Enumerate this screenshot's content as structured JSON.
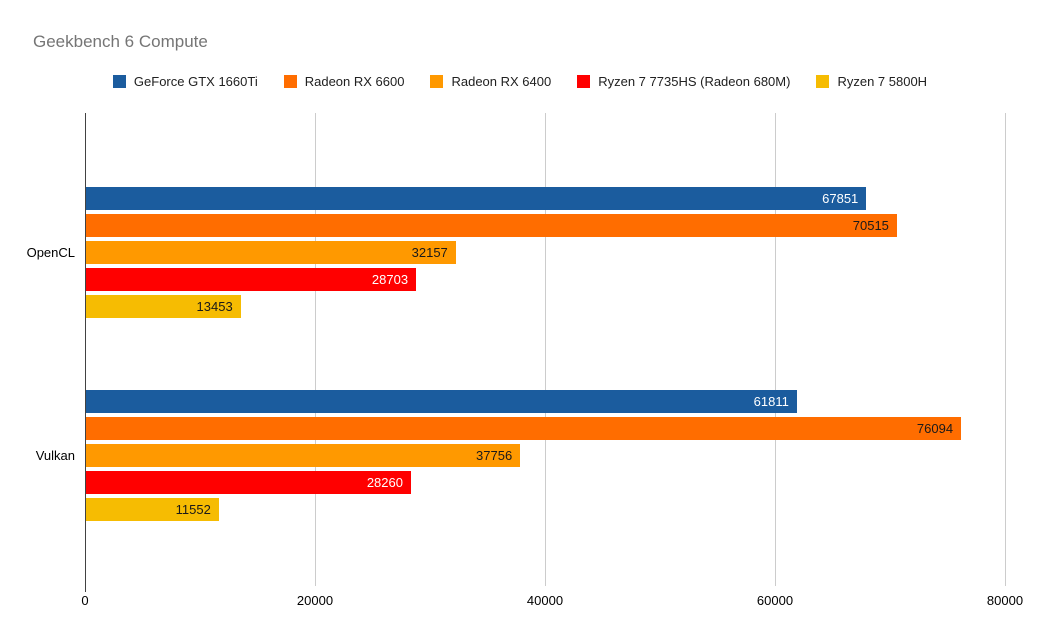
{
  "title": "Geekbench 6 Compute",
  "colors": {
    "background": "#ffffff",
    "title_text": "#757575",
    "gridline": "#cccccc",
    "axis_line": "#424242",
    "tick_text": "#000000"
  },
  "chart_data": {
    "type": "bar",
    "orientation": "horizontal",
    "title": "Geekbench 6 Compute",
    "xlabel": "",
    "ylabel": "",
    "categories": [
      "OpenCL",
      "Vulkan"
    ],
    "series": [
      {
        "name": "GeForce GTX 1660Ti",
        "color": "#1B5C9E",
        "label_color": "#ffffff",
        "values": [
          67851,
          61811
        ]
      },
      {
        "name": "Radeon RX 6600",
        "color": "#FF6D00",
        "label_color": "#1a1a1a",
        "values": [
          70515,
          76094
        ]
      },
      {
        "name": "Radeon RX 6400",
        "color": "#FF9900",
        "label_color": "#1a1a1a",
        "values": [
          32157,
          37756
        ]
      },
      {
        "name": "Ryzen 7 7735HS (Radeon 680M)",
        "color": "#FF0000",
        "label_color": "#ffffff",
        "values": [
          28703,
          28260
        ]
      },
      {
        "name": "Ryzen 7 5800H",
        "color": "#F6BC02",
        "label_color": "#1a1a1a",
        "values": [
          13453,
          11552
        ]
      }
    ],
    "x_ticks": [
      0,
      20000,
      40000,
      60000,
      80000
    ],
    "x_tick_labels": [
      "0",
      "20000",
      "40000",
      "60000",
      "80000"
    ],
    "xlim": [
      0,
      80000
    ],
    "grid": true,
    "legend_position": "top",
    "value_labels": "inside-end"
  }
}
